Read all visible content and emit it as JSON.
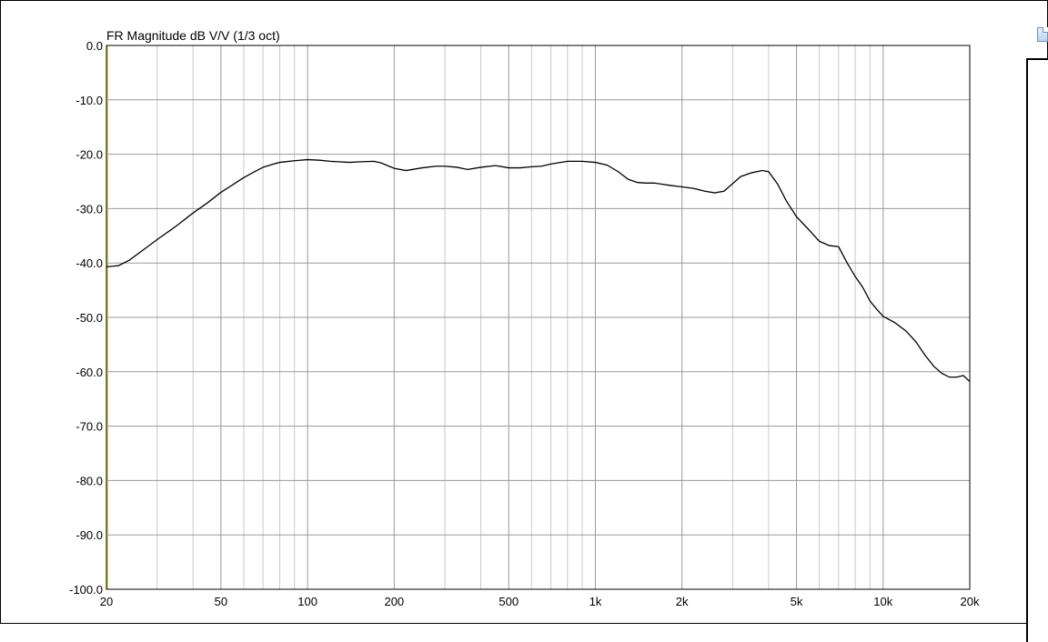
{
  "chart_data": {
    "type": "line",
    "title": "FR Magnitude dB V/V (1/3 oct)",
    "x_scale": "log",
    "xlim": [
      20,
      20000
    ],
    "ylim": [
      -100,
      0
    ],
    "grid": true,
    "x_ticks": [
      20,
      50,
      100,
      200,
      500,
      1000,
      2000,
      5000,
      10000,
      20000
    ],
    "x_tick_labels": [
      "20",
      "50",
      "100",
      "200",
      "500",
      "1k",
      "2k",
      "5k",
      "10k",
      "20k"
    ],
    "y_ticks": [
      0,
      -10,
      -20,
      -30,
      -40,
      -50,
      -60,
      -70,
      -80,
      -90,
      -100
    ],
    "y_tick_labels": [
      "0.0",
      "-10.0",
      "-20.0",
      "-30.0",
      "-40.0",
      "-50.0",
      "-60.0",
      "-70.0",
      "-80.0",
      "-90.0",
      "-100.0"
    ],
    "series": [
      {
        "color": "#000000",
        "x": [
          20,
          22,
          24,
          27,
          30,
          35,
          40,
          45,
          50,
          55,
          60,
          65,
          70,
          75,
          80,
          90,
          100,
          110,
          120,
          130,
          140,
          150,
          170,
          180,
          200,
          220,
          250,
          280,
          300,
          330,
          360,
          400,
          450,
          500,
          550,
          600,
          650,
          700,
          800,
          900,
          1000,
          1100,
          1200,
          1300,
          1400,
          1500,
          1600,
          1700,
          1800,
          2000,
          2200,
          2400,
          2600,
          2800,
          3000,
          3200,
          3500,
          3800,
          4000,
          4300,
          4600,
          5000,
          5500,
          6000,
          6500,
          7000,
          7500,
          8000,
          8500,
          9000,
          9500,
          10000,
          11000,
          12000,
          12500,
          13000,
          14000,
          15000,
          16000,
          17000,
          18000,
          19000,
          20000
        ],
        "y": [
          -40.7,
          -40.5,
          -39.5,
          -37.5,
          -35.7,
          -33.2,
          -30.8,
          -28.9,
          -27.0,
          -25.6,
          -24.3,
          -23.3,
          -22.4,
          -21.9,
          -21.5,
          -21.2,
          -21.0,
          -21.1,
          -21.3,
          -21.4,
          -21.5,
          -21.4,
          -21.3,
          -21.6,
          -22.6,
          -23.0,
          -22.5,
          -22.2,
          -22.2,
          -22.4,
          -22.8,
          -22.4,
          -22.1,
          -22.5,
          -22.5,
          -22.3,
          -22.2,
          -21.8,
          -21.3,
          -21.3,
          -21.5,
          -22.0,
          -23.2,
          -24.6,
          -25.2,
          -25.3,
          -25.3,
          -25.5,
          -25.7,
          -26.0,
          -26.3,
          -26.8,
          -27.1,
          -26.8,
          -25.4,
          -24.1,
          -23.4,
          -23.0,
          -23.2,
          -25.5,
          -28.5,
          -31.5,
          -33.8,
          -36.0,
          -36.8,
          -37.0,
          -40.0,
          -42.5,
          -44.5,
          -47.0,
          -48.5,
          -49.8,
          -51.0,
          -52.5,
          -53.5,
          -54.5,
          -57.0,
          -59.0,
          -60.3,
          -61.0,
          -61.0,
          -60.7,
          -61.8
        ]
      }
    ]
  }
}
